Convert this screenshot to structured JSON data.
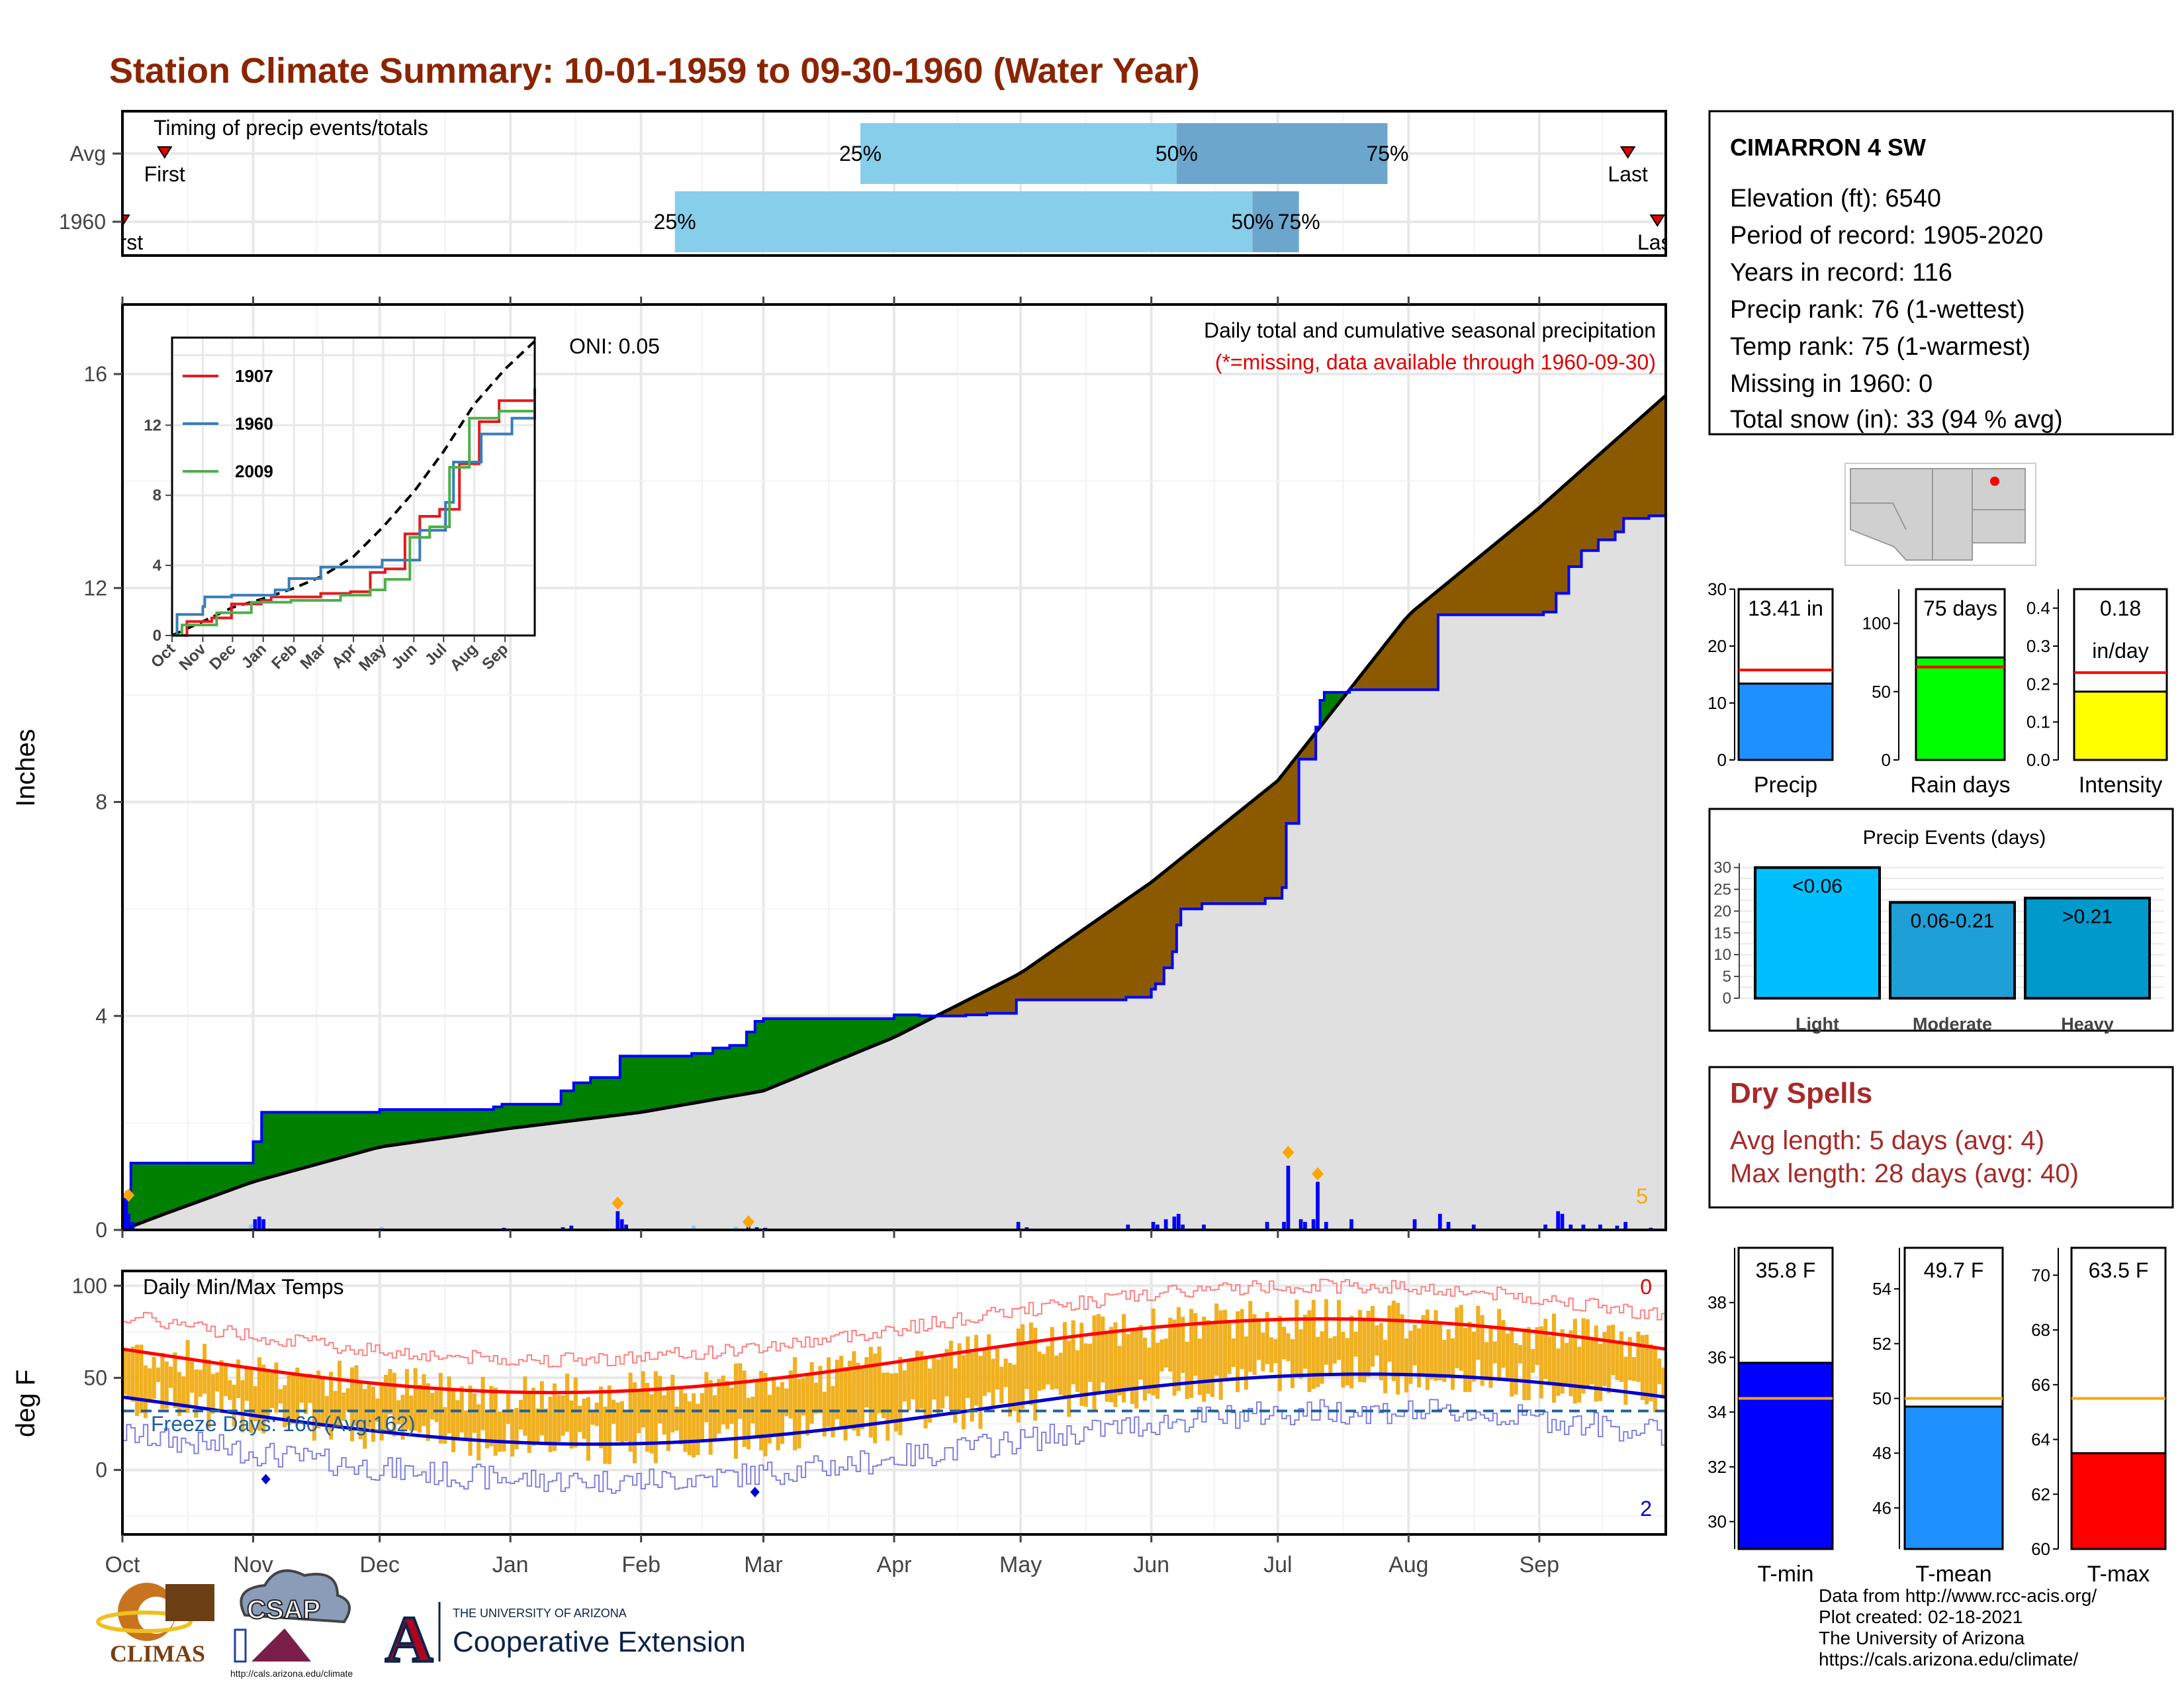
{
  "title": "Station Climate Summary: 10-01-1959 to 09-30-1960 (Water Year)",
  "timing": {
    "label": "Timing of precip events/totals",
    "rows": [
      "Avg",
      "1960"
    ],
    "avg": {
      "first": "First",
      "last": "Last",
      "p25": "25%",
      "p50": "50%",
      "p75": "75%"
    },
    "y1960": {
      "first": "First",
      "last": "Last",
      "p25": "25%",
      "p50": "50%",
      "p75": "75%"
    },
    "avg_day": {
      "first": 10,
      "p25": 175,
      "p50": 250,
      "p75": 300,
      "last": 357
    },
    "y1960_day": {
      "first": 0,
      "p25": 131,
      "p50": 268,
      "p75": 279,
      "last": 364
    },
    "colors": {
      "light": "#87CEEB",
      "dark": "#6CA6CD"
    }
  },
  "station": {
    "name": "CIMARRON 4 SW",
    "lines": [
      "Elevation (ft): 6540",
      "Period of record: 1905-2020",
      "Years in record: 116",
      "Precip rank: 76 (1-wettest)",
      "Temp rank: 75 (1-warmest)",
      "Missing in 1960: 0",
      "Total snow (in): 33 (94 % avg)"
    ]
  },
  "precip_panel": {
    "ylabel": "Inches",
    "title": "Daily total and cumulative seasonal precipitation",
    "note": "(*=missing, data available through 1960-09-30)",
    "oni": "ONI: 0.05",
    "snow_count": "5",
    "yticks": [
      "0",
      "4",
      "8",
      "12",
      "16"
    ],
    "months": [
      "Oct",
      "Nov",
      "Dec",
      "Jan",
      "Feb",
      "Mar",
      "Apr",
      "May",
      "Jun",
      "Jul",
      "Aug",
      "Sep"
    ],
    "colors": {
      "above": "#008000",
      "below": "#8B5A00",
      "cumulative": "#0000FF",
      "normal": "#000000",
      "fill": "#E0E0E0",
      "snow": "#FFA500"
    }
  },
  "inset": {
    "legend": [
      "1907",
      "1960",
      "2009"
    ],
    "yticks": [
      "0",
      "4",
      "8",
      "12"
    ],
    "months": [
      "Oct",
      "Nov",
      "Dec",
      "Jan",
      "Feb",
      "Mar",
      "Apr",
      "May",
      "Jun",
      "Jul",
      "Aug",
      "Sep"
    ],
    "colors": [
      "#E41A1C",
      "#377EB8",
      "#4DAF4A"
    ]
  },
  "summary_bars": {
    "precip": {
      "label": "Precip",
      "value_text": "13.41 in",
      "value": 13.41,
      "avg": 15.8,
      "ymax": 30,
      "yticks": [
        "0",
        "10",
        "20",
        "30"
      ],
      "color": "#1E90FF"
    },
    "rain_days": {
      "label": "Rain days",
      "value_text": "75 days",
      "value": 75,
      "avg": 68,
      "ymax": 125,
      "yticks": [
        "0",
        "50",
        "100"
      ],
      "color": "#00FF00"
    },
    "intensity": {
      "label": "Intensity",
      "value_text": "0.18",
      "value_text2": "in/day",
      "value": 0.18,
      "avg": 0.23,
      "ymax": 0.45,
      "yticks": [
        "0.0",
        "0.1",
        "0.2",
        "0.3",
        "0.4"
      ],
      "color": "#FFFF00"
    }
  },
  "events": {
    "title": "Precip Events (days)",
    "yticks": [
      "0",
      "5",
      "10",
      "15",
      "20",
      "25",
      "30"
    ],
    "bars": [
      {
        "label": "Light",
        "tag": "<0.06",
        "value": 30,
        "color": "#00BFFF"
      },
      {
        "label": "Moderate",
        "tag": "0.06-0.21",
        "value": 22,
        "color": "#1E9FD6"
      },
      {
        "label": "Heavy",
        "tag": ">0.21",
        "value": 23,
        "color": "#0099CC"
      }
    ]
  },
  "dry_spells": {
    "title": "Dry Spells",
    "avg": "Avg length: 5 days (avg: 4)",
    "max": "Max length: 28 days (avg: 40)"
  },
  "temp_panel": {
    "title": "Daily Min/Max Temps",
    "ylabel": "deg F",
    "freeze": "Freeze Days: 160 (Avg:162)",
    "hot_count": "0",
    "cold_count": "2",
    "yticks": [
      "0",
      "50",
      "100"
    ],
    "months": [
      "Oct",
      "Nov",
      "Dec",
      "Jan",
      "Feb",
      "Mar",
      "Apr",
      "May",
      "Jun",
      "Jul",
      "Aug",
      "Sep"
    ],
    "colors": {
      "bars": "#F0B020",
      "max_norm": "#FF0000",
      "min_norm": "#0000CD",
      "record_hi": "#FF8080",
      "record_lo": "#8080E0",
      "freeze": "#1F5FA0"
    }
  },
  "temp_bars": {
    "tmin": {
      "label": "T-min",
      "value_text": "35.8 F",
      "value": 35.8,
      "avg": 34.5,
      "ymin": 29,
      "ymax": 40,
      "yticks": [
        "30",
        "32",
        "34",
        "36",
        "38"
      ],
      "color": "#0000FF"
    },
    "tmean": {
      "label": "T-mean",
      "value_text": "49.7 F",
      "value": 49.7,
      "avg": 50.0,
      "ymin": 44.5,
      "ymax": 55.5,
      "yticks": [
        "46",
        "48",
        "50",
        "52",
        "54"
      ],
      "color": "#1E90FF"
    },
    "tmax": {
      "label": "T-max",
      "value_text": "63.5 F",
      "value": 63.5,
      "avg": 65.5,
      "ymin": 60,
      "ymax": 71,
      "yticks": [
        "60",
        "62",
        "64",
        "66",
        "68",
        "70"
      ],
      "color": "#FF0000"
    }
  },
  "footer": {
    "logos": {
      "climas": "CLIMAS",
      "csap": "CSAP",
      "csap_url": "http://cals.arizona.edu/climate",
      "ua_small": "THE UNIVERSITY OF ARIZONA",
      "ua_big": "Cooperative Extension",
      "ua_letter": "A"
    },
    "credits": [
      "Data from http://www.rcc-acis.org/",
      "Plot created: 02-18-2021",
      "The University of Arizona",
      "https://cals.arizona.edu/climate/"
    ]
  }
}
